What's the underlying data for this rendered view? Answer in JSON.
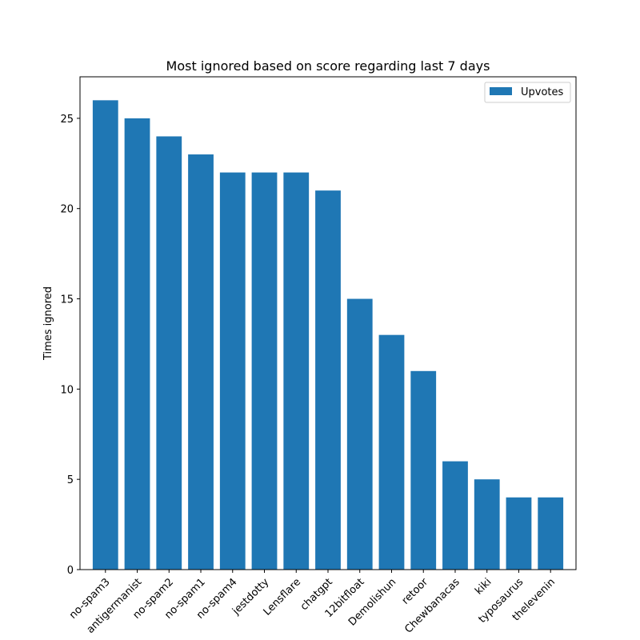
{
  "chart_data": {
    "type": "bar",
    "title": "Most ignored based on score regarding last 7 days",
    "xlabel": "",
    "ylabel": "Times ignored",
    "categories": [
      "no-spam3",
      "antigermanist",
      "no-spam2",
      "no-spam1",
      "no-spam4",
      "jestdotty",
      "Lensflare",
      "chatgpt",
      "12bitfloat",
      "Demolishun",
      "retoor",
      "Chewbanacas",
      "kiki",
      "typosaurus",
      "thelevenin"
    ],
    "series": [
      {
        "name": "Upvotes",
        "values": [
          26,
          25,
          24,
          23,
          22,
          22,
          22,
          21,
          15,
          13,
          11,
          6,
          5,
          4,
          4
        ],
        "color": "#1f77b4"
      }
    ],
    "ylim": [
      0,
      27.3
    ],
    "yticks": [
      0,
      5,
      10,
      15,
      20,
      25
    ],
    "grid": false,
    "legend_position": "upper right",
    "x_tick_rotation": -45
  }
}
